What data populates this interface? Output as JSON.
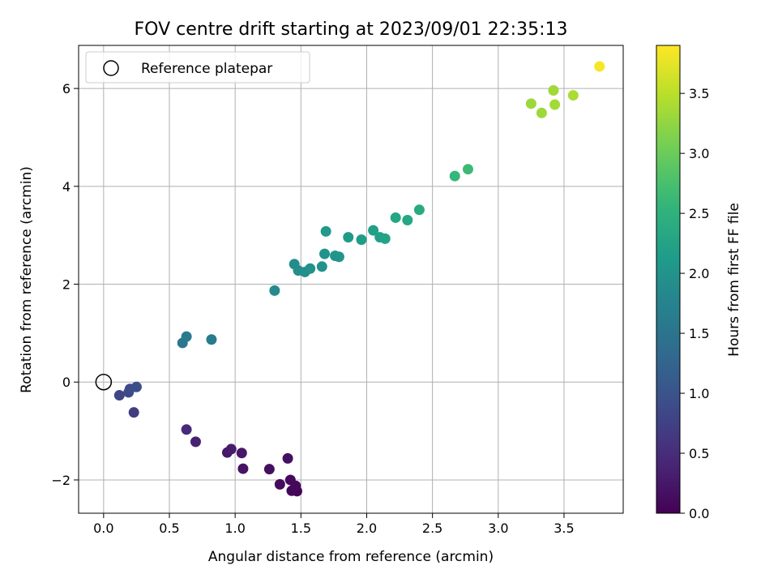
{
  "chart_data": {
    "type": "scatter",
    "title": "FOV centre drift starting at 2023/09/01 22:35:13",
    "xlabel": "Angular distance from reference (arcmin)",
    "ylabel": "Rotation from reference (arcmin)",
    "xlim": [
      -0.19,
      3.95
    ],
    "ylim": [
      -2.68,
      6.88
    ],
    "xticks": [
      0.0,
      0.5,
      1.0,
      1.5,
      2.0,
      2.5,
      3.0,
      3.5
    ],
    "xtick_labels": [
      "0.0",
      "0.5",
      "1.0",
      "1.5",
      "2.0",
      "2.5",
      "3.0",
      "3.5"
    ],
    "yticks": [
      -2,
      0,
      2,
      4,
      6
    ],
    "ytick_labels": [
      "−2",
      "0",
      "2",
      "4",
      "6"
    ],
    "grid": true,
    "legend": {
      "position": "top-left",
      "entries": [
        {
          "label": "Reference platepar",
          "marker": "open-circle"
        }
      ]
    },
    "reference_point": {
      "x": 0.0,
      "y": 0.0
    },
    "colorbar": {
      "label": "Hours from first FF file",
      "colormap": "viridis",
      "range": [
        0.0,
        3.9
      ],
      "ticks": [
        0.0,
        0.5,
        1.0,
        1.5,
        2.0,
        2.5,
        3.0,
        3.5
      ],
      "tick_labels": [
        "0.0",
        "0.5",
        "1.0",
        "1.5",
        "2.0",
        "2.5",
        "3.0",
        "3.5"
      ]
    },
    "points": [
      {
        "x": 1.47,
        "y": -2.23,
        "c": 0.02
      },
      {
        "x": 1.43,
        "y": -2.22,
        "c": 0.05
      },
      {
        "x": 1.46,
        "y": -2.12,
        "c": 0.08
      },
      {
        "x": 1.42,
        "y": -2.0,
        "c": 0.1
      },
      {
        "x": 1.34,
        "y": -2.09,
        "c": 0.12
      },
      {
        "x": 1.26,
        "y": -1.78,
        "c": 0.15
      },
      {
        "x": 1.4,
        "y": -1.56,
        "c": 0.17
      },
      {
        "x": 1.06,
        "y": -1.77,
        "c": 0.2
      },
      {
        "x": 1.05,
        "y": -1.45,
        "c": 0.23
      },
      {
        "x": 0.94,
        "y": -1.44,
        "c": 0.26
      },
      {
        "x": 0.97,
        "y": -1.37,
        "c": 0.3
      },
      {
        "x": 0.7,
        "y": -1.22,
        "c": 0.36
      },
      {
        "x": 0.63,
        "y": -0.97,
        "c": 0.45
      },
      {
        "x": 0.23,
        "y": -0.62,
        "c": 0.7
      },
      {
        "x": 0.12,
        "y": -0.27,
        "c": 0.8
      },
      {
        "x": 0.19,
        "y": -0.21,
        "c": 0.85
      },
      {
        "x": 0.2,
        "y": -0.14,
        "c": 0.88
      },
      {
        "x": 0.25,
        "y": -0.1,
        "c": 0.92
      },
      {
        "x": 0.6,
        "y": 0.8,
        "c": 1.55
      },
      {
        "x": 0.63,
        "y": 0.93,
        "c": 1.6
      },
      {
        "x": 0.82,
        "y": 0.87,
        "c": 1.62
      },
      {
        "x": 1.3,
        "y": 1.87,
        "c": 1.85
      },
      {
        "x": 1.45,
        "y": 2.41,
        "c": 1.9
      },
      {
        "x": 1.48,
        "y": 2.28,
        "c": 1.92
      },
      {
        "x": 1.53,
        "y": 2.25,
        "c": 1.94
      },
      {
        "x": 1.57,
        "y": 2.32,
        "c": 1.96
      },
      {
        "x": 1.66,
        "y": 2.36,
        "c": 1.98
      },
      {
        "x": 1.68,
        "y": 2.62,
        "c": 2.0
      },
      {
        "x": 1.76,
        "y": 2.58,
        "c": 2.02
      },
      {
        "x": 1.79,
        "y": 2.56,
        "c": 2.03
      },
      {
        "x": 1.69,
        "y": 3.08,
        "c": 2.1
      },
      {
        "x": 1.86,
        "y": 2.96,
        "c": 2.12
      },
      {
        "x": 1.96,
        "y": 2.91,
        "c": 2.15
      },
      {
        "x": 2.05,
        "y": 3.1,
        "c": 2.2
      },
      {
        "x": 2.1,
        "y": 2.96,
        "c": 2.22
      },
      {
        "x": 2.14,
        "y": 2.93,
        "c": 2.24
      },
      {
        "x": 2.22,
        "y": 3.36,
        "c": 2.3
      },
      {
        "x": 2.31,
        "y": 3.31,
        "c": 2.33
      },
      {
        "x": 2.4,
        "y": 3.52,
        "c": 2.38
      },
      {
        "x": 2.67,
        "y": 4.21,
        "c": 2.6
      },
      {
        "x": 2.77,
        "y": 4.35,
        "c": 2.65
      },
      {
        "x": 3.25,
        "y": 5.69,
        "c": 3.3
      },
      {
        "x": 3.33,
        "y": 5.5,
        "c": 3.32
      },
      {
        "x": 3.42,
        "y": 5.96,
        "c": 3.34
      },
      {
        "x": 3.43,
        "y": 5.67,
        "c": 3.36
      },
      {
        "x": 3.57,
        "y": 5.86,
        "c": 3.4
      },
      {
        "x": 3.77,
        "y": 6.45,
        "c": 3.85
      }
    ]
  }
}
